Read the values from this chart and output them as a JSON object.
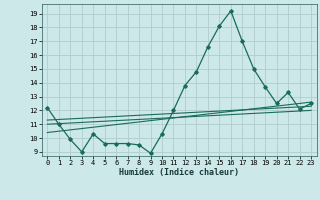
{
  "title": "",
  "xlabel": "Humidex (Indice chaleur)",
  "ylabel": "",
  "bg_color": "#cce8e8",
  "grid_color": "#b0cccc",
  "line_color": "#1a6b5a",
  "xlim": [
    -0.5,
    23.5
  ],
  "ylim": [
    8.7,
    19.7
  ],
  "yticks": [
    9,
    10,
    11,
    12,
    13,
    14,
    15,
    16,
    17,
    18,
    19
  ],
  "xticks": [
    0,
    1,
    2,
    3,
    4,
    5,
    6,
    7,
    8,
    9,
    10,
    11,
    12,
    13,
    14,
    15,
    16,
    17,
    18,
    19,
    20,
    21,
    22,
    23
  ],
  "series": [
    {
      "x": [
        0,
        1,
        2,
        3,
        4,
        5,
        6,
        7,
        8,
        9,
        10,
        11,
        12,
        13,
        14,
        15,
        16,
        17,
        18,
        19,
        20,
        21,
        22,
        23
      ],
      "y": [
        12.2,
        11.0,
        9.9,
        9.0,
        10.3,
        9.6,
        9.6,
        9.6,
        9.5,
        8.9,
        10.3,
        12.0,
        13.8,
        14.8,
        16.6,
        18.1,
        19.2,
        17.0,
        15.0,
        13.7,
        12.5,
        13.3,
        12.1,
        12.5
      ]
    },
    {
      "x": [
        0,
        23
      ],
      "y": [
        10.4,
        12.6
      ]
    },
    {
      "x": [
        0,
        23
      ],
      "y": [
        11.0,
        12.0
      ]
    },
    {
      "x": [
        0,
        23
      ],
      "y": [
        11.3,
        12.3
      ]
    }
  ]
}
